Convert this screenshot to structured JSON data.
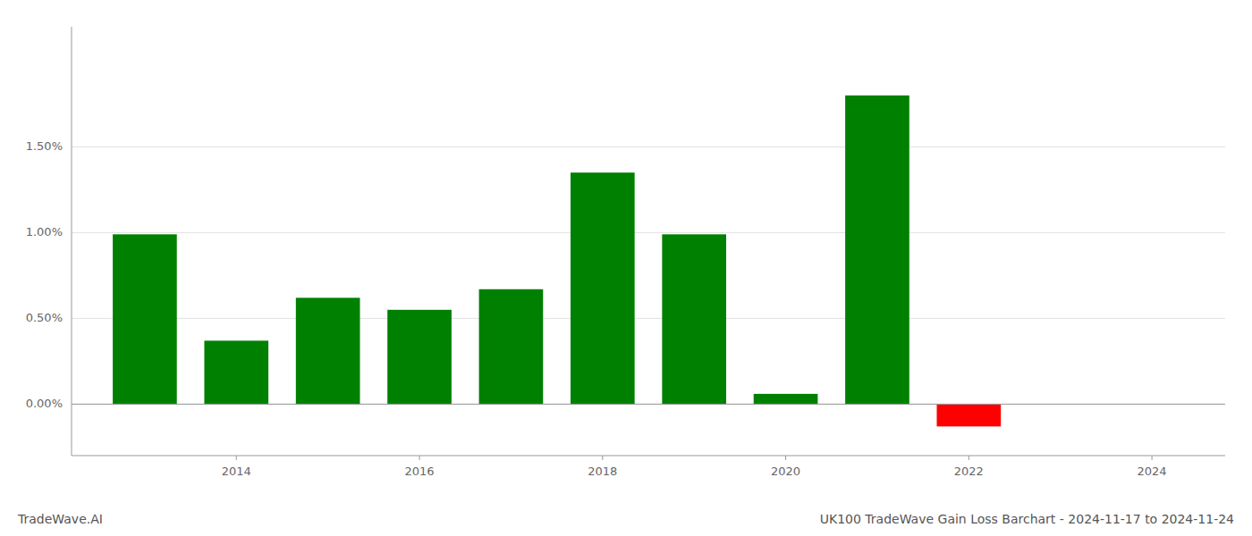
{
  "chart_data": {
    "type": "bar",
    "title": "UK100 TradeWave Gain Loss Barchart - 2024-11-17 to 2024-11-24",
    "annotations": [
      "TradeWave.AI"
    ],
    "x": [
      2013,
      2014,
      2015,
      2016,
      2017,
      2018,
      2019,
      2020,
      2021,
      2022,
      2023
    ],
    "values": [
      0.0099,
      0.0037,
      0.0062,
      0.0055,
      0.0067,
      0.0135,
      0.0099,
      0.0006,
      0.018,
      -0.0013,
      0.0
    ],
    "colors": [
      "#008000",
      "#008000",
      "#008000",
      "#008000",
      "#008000",
      "#008000",
      "#008000",
      "#008000",
      "#008000",
      "#ff0000",
      "#008000"
    ],
    "xlim": [
      2012.2,
      2024.8
    ],
    "xticks": [
      2014,
      2016,
      2018,
      2020,
      2022,
      2024
    ],
    "ylim": [
      -0.003,
      0.022
    ],
    "yticks": [
      {
        "value": 0.0,
        "label": "0.00%"
      },
      {
        "value": 0.005,
        "label": "0.50%"
      },
      {
        "value": 0.01,
        "label": "1.00%"
      },
      {
        "value": 0.015,
        "label": "1.50%"
      }
    ],
    "grid": true
  }
}
